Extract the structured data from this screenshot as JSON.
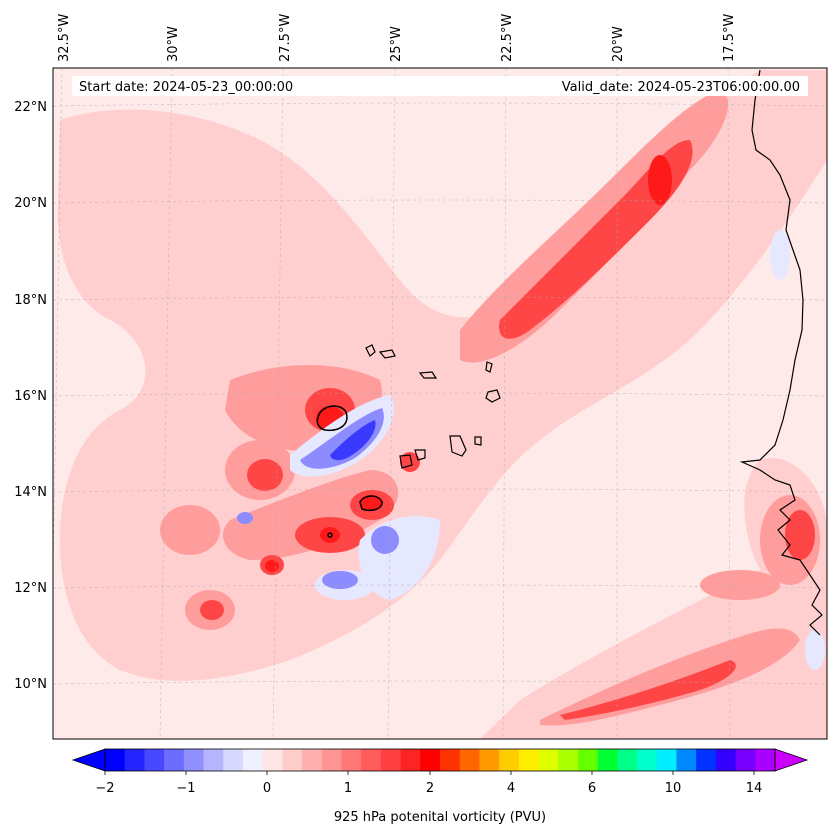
{
  "header": {
    "start_date": "Start date: 2024-05-23_00:00:00",
    "valid_date": "Valid_date: 2024-05-23T06:00:00.00"
  },
  "axes": {
    "lon_ticks": [
      "32.5°W",
      "30°W",
      "27.5°W",
      "25°W",
      "22.5°W",
      "20°W",
      "17.5°W"
    ],
    "lat_ticks": [
      "22°N",
      "20°N",
      "18°N",
      "16°N",
      "14°N",
      "12°N",
      "10°N"
    ]
  },
  "colorbar": {
    "title": "925 hPa potenital vorticity (PVU)",
    "tick_labels": [
      "−2",
      "−1",
      "0",
      "1",
      "2",
      "4",
      "6",
      "10",
      "14"
    ],
    "colors": [
      "#0000ff",
      "#2424ff",
      "#4848ff",
      "#6c6cff",
      "#9090ff",
      "#b4b4ff",
      "#d8d8ff",
      "#f0f0ff",
      "#ffe6e6",
      "#ffcccc",
      "#ffb0b0",
      "#ff9494",
      "#ff7878",
      "#ff5c5c",
      "#ff4040",
      "#ff2424",
      "#ff0000",
      "#ff3300",
      "#ff6600",
      "#ff9900",
      "#ffcc00",
      "#ffee00",
      "#ddff00",
      "#aaff00",
      "#66ff00",
      "#00ff33",
      "#00ff88",
      "#00ffcc",
      "#00eeff",
      "#0088ff",
      "#0033ff",
      "#3300ff",
      "#7700ff",
      "#aa00ff"
    ],
    "under_color": "#0000ff",
    "over_color": "#cc00ff"
  },
  "colors": {
    "background_field": "#ffeaea",
    "light_pink": "#ffcfcf",
    "mid_pink": "#ff9c9c",
    "red": "#ff4646",
    "deep_red": "#ff1a1a",
    "light_blue": "#e6e8ff",
    "mid_blue": "#8c8cff",
    "deep_blue": "#3a3aff"
  }
}
